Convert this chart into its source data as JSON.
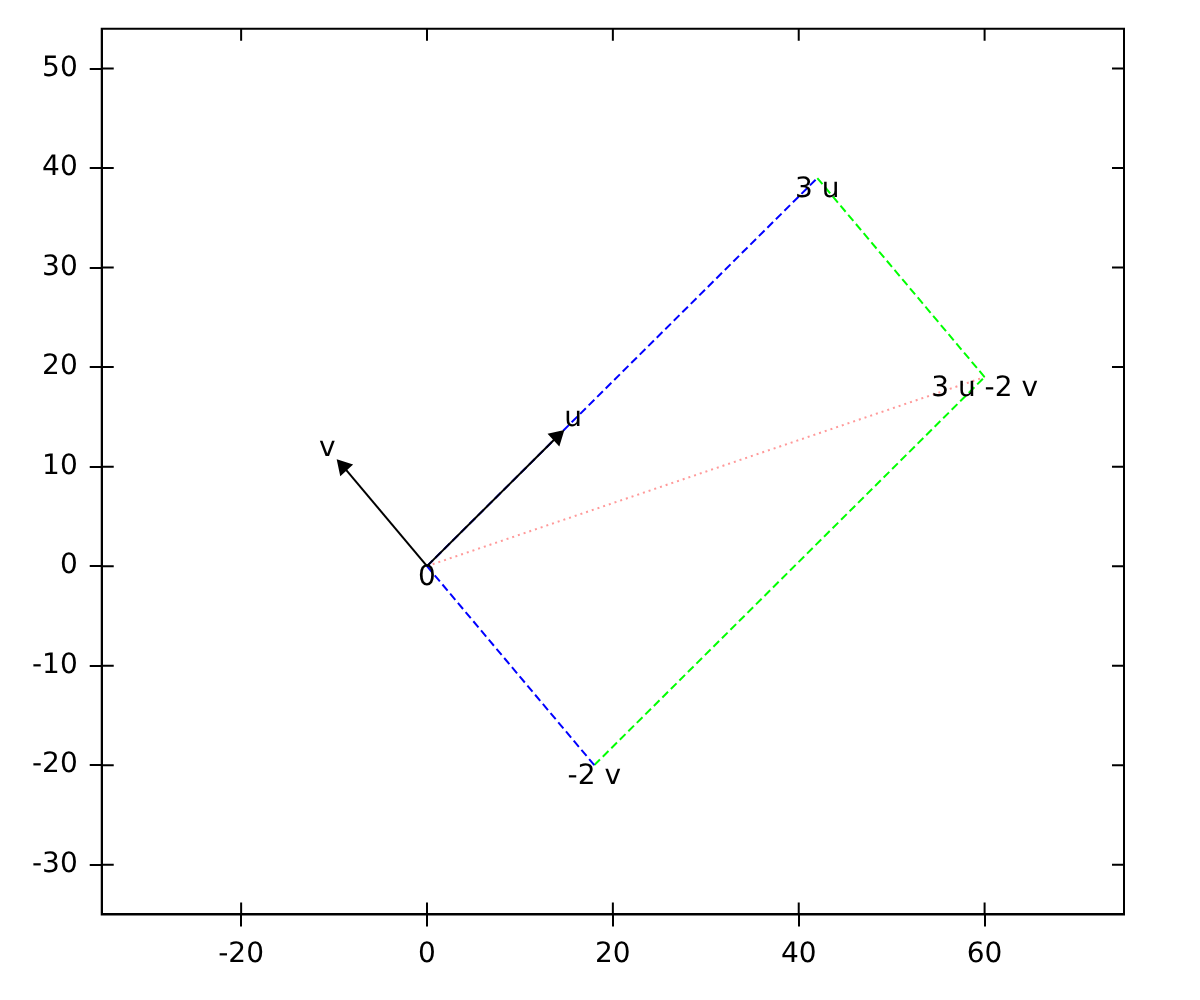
{
  "chart_data": {
    "type": "line",
    "xlim": [
      -35,
      75
    ],
    "ylim": [
      -35,
      54
    ],
    "xticks": [
      -20,
      0,
      20,
      40,
      60
    ],
    "yticks": [
      -30,
      -20,
      -10,
      0,
      10,
      20,
      30,
      40,
      50
    ],
    "grid": false,
    "legend": false,
    "series": [
      {
        "name": "v",
        "color": "#000000",
        "line_style": "solid",
        "marker": "triangle",
        "x": [
          0,
          -9
        ],
        "values": [
          0,
          10
        ]
      },
      {
        "name": "u",
        "color": "#000000",
        "line_style": "solid",
        "marker": "triangle",
        "x": [
          0,
          14
        ],
        "values": [
          0,
          13
        ]
      },
      {
        "color": "#0000ff",
        "line_style": "dashed",
        "x": [
          0,
          42
        ],
        "values": [
          0,
          39
        ]
      },
      {
        "color": "#0000ff",
        "line_style": "dashed",
        "x": [
          0,
          18
        ],
        "values": [
          0,
          -20
        ]
      },
      {
        "color": "#00ff00",
        "line_style": "dashed",
        "x": [
          42,
          60
        ],
        "values": [
          39,
          19
        ]
      },
      {
        "color": "#00ff00",
        "line_style": "dashed",
        "x": [
          18,
          60
        ],
        "values": [
          -20,
          19
        ]
      },
      {
        "color": "#ff9999",
        "line_style": "dotted",
        "x": [
          0,
          60
        ],
        "values": [
          0,
          19
        ]
      }
    ],
    "annotations": [
      {
        "text": "0",
        "x": 0,
        "y": 0
      },
      {
        "text": "3 u",
        "x": 42,
        "y": 39
      },
      {
        "text": "3 u -2 v",
        "x": 60,
        "y": 19
      },
      {
        "text": "-2 v",
        "x": 18,
        "y": -20
      }
    ]
  }
}
